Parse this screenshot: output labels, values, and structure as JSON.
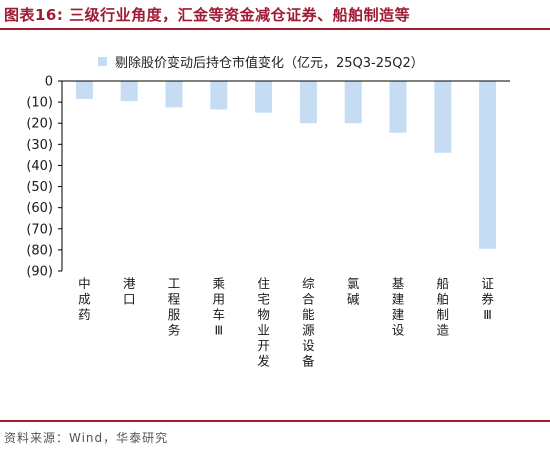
{
  "header": {
    "title": "图表16:  三级行业角度，汇金等资金减仓证券、船舶制造等"
  },
  "footer": {
    "source": "资料来源：Wind，华泰研究"
  },
  "colors": {
    "bar": "#c5dcf2",
    "accent": "#9e1b32",
    "axis": "#000000"
  },
  "chart_data": {
    "type": "bar",
    "title": "",
    "xlabel": "",
    "ylabel": "",
    "ylim": [
      -90,
      0
    ],
    "y_ticks": [
      0,
      -10,
      -20,
      -30,
      -40,
      -50,
      -60,
      -70,
      -80,
      -90
    ],
    "y_tick_labels": [
      "0",
      "(10)",
      "(20)",
      "(30)",
      "(40)",
      "(50)",
      "(60)",
      "(70)",
      "(80)",
      "(90)"
    ],
    "grid": false,
    "legend_position": "top",
    "categories": [
      "中成药",
      "港口",
      "工程服务",
      "乘用车Ⅲ",
      "住宅物业开发",
      "综合能源设备",
      "氯碱",
      "基建建设",
      "船舶制造",
      "证券Ⅲ"
    ],
    "series": [
      {
        "name": "剔除股价变动后持仓市值变化（亿元，25Q3-25Q2）",
        "values": [
          -8.5,
          -9.5,
          -12.5,
          -13.5,
          -15,
          -20,
          -20,
          -24.5,
          -34,
          -79.5
        ]
      }
    ]
  }
}
